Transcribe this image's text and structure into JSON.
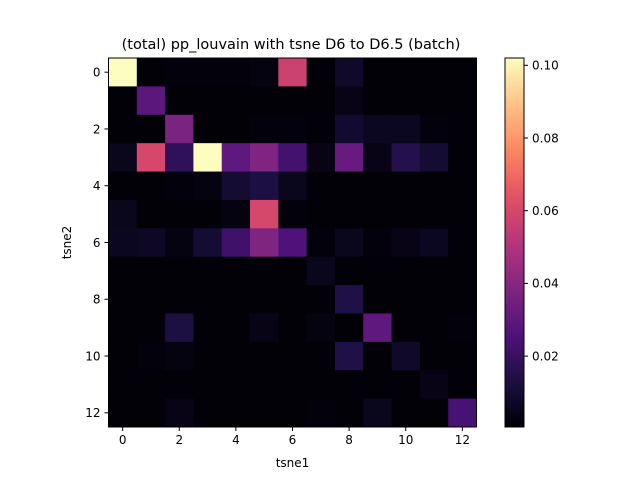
{
  "chart_data": {
    "type": "heatmap",
    "title": "(total) pp_louvain with tsne D6 to D6.5 (batch)",
    "xlabel": "tsne1",
    "ylabel": "tsne2",
    "x_ticks": [
      0,
      2,
      4,
      6,
      8,
      10,
      12
    ],
    "y_ticks": [
      0,
      2,
      4,
      6,
      8,
      10,
      12
    ],
    "x_range": [
      -0.5,
      12.5
    ],
    "y_range": [
      12.5,
      -0.5
    ],
    "colormap": "magma",
    "vmin": 0.0005,
    "vmax": 0.102,
    "colorbar_ticks": [
      0.02,
      0.04,
      0.06,
      0.08,
      0.1
    ],
    "colorbar_tick_labels": [
      "0.02",
      "0.04",
      "0.06",
      "0.08",
      "0.10"
    ],
    "values": [
      [
        0.102,
        0.001,
        0.002,
        0.002,
        0.002,
        0.003,
        0.057,
        0.001,
        0.008,
        0.001,
        0.001,
        0.001,
        0.001
      ],
      [
        0.001,
        0.029,
        0.001,
        0.001,
        0.001,
        0.001,
        0.001,
        0.001,
        0.004,
        0.001,
        0.001,
        0.001,
        0.001
      ],
      [
        0.001,
        0.001,
        0.037,
        0.001,
        0.001,
        0.002,
        0.002,
        0.001,
        0.009,
        0.006,
        0.006,
        0.002,
        0.001
      ],
      [
        0.005,
        0.06,
        0.018,
        0.102,
        0.03,
        0.038,
        0.023,
        0.004,
        0.032,
        0.004,
        0.015,
        0.01,
        0.001
      ],
      [
        0.001,
        0.001,
        0.002,
        0.003,
        0.01,
        0.013,
        0.005,
        0.001,
        0.001,
        0.001,
        0.001,
        0.001,
        0.001
      ],
      [
        0.005,
        0.001,
        0.001,
        0.001,
        0.003,
        0.06,
        0.002,
        0.001,
        0.001,
        0.001,
        0.001,
        0.001,
        0.001
      ],
      [
        0.006,
        0.007,
        0.003,
        0.01,
        0.022,
        0.038,
        0.026,
        0.002,
        0.005,
        0.002,
        0.004,
        0.006,
        0.001
      ],
      [
        0.001,
        0.001,
        0.001,
        0.001,
        0.001,
        0.001,
        0.001,
        0.005,
        0.001,
        0.001,
        0.001,
        0.001,
        0.001
      ],
      [
        0.001,
        0.001,
        0.001,
        0.001,
        0.001,
        0.001,
        0.001,
        0.001,
        0.014,
        0.001,
        0.001,
        0.001,
        0.001
      ],
      [
        0.001,
        0.001,
        0.013,
        0.001,
        0.001,
        0.004,
        0.001,
        0.003,
        0.001,
        0.03,
        0.001,
        0.001,
        0.002
      ],
      [
        0.001,
        0.002,
        0.003,
        0.001,
        0.001,
        0.001,
        0.001,
        0.001,
        0.014,
        0.001,
        0.008,
        0.001,
        0.001
      ],
      [
        0.001,
        0.001,
        0.001,
        0.001,
        0.001,
        0.001,
        0.001,
        0.001,
        0.001,
        0.001,
        0.001,
        0.004,
        0.001
      ],
      [
        0.001,
        0.001,
        0.004,
        0.001,
        0.001,
        0.001,
        0.001,
        0.002,
        0.001,
        0.005,
        0.001,
        0.001,
        0.024
      ]
    ]
  }
}
